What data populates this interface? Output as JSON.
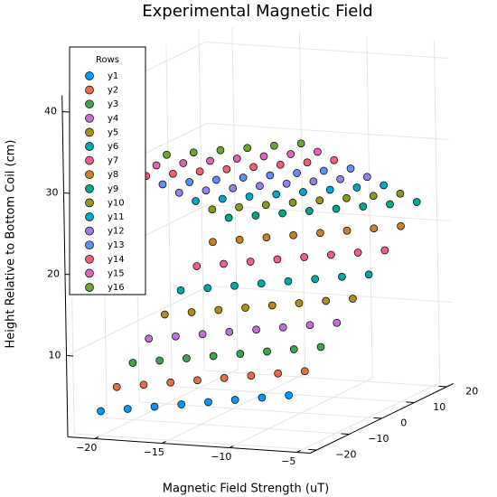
{
  "chart_data": {
    "type": "scatter3d",
    "title": "Experimental Magnetic Field",
    "xlabel": "Magnetic Field Strength (uT)",
    "zlabel": "Height Relative to Bottom Coil (cm)",
    "legend_title": "Rows",
    "legend": "top-left",
    "grid": true,
    "xlim": [
      -22,
      -4
    ],
    "xticks": [
      {
        "value": -20,
        "label": "−20"
      },
      {
        "value": -15,
        "label": "−15"
      },
      {
        "value": -10,
        "label": "−10"
      },
      {
        "value": -5,
        "label": "−5"
      }
    ],
    "ylim": [
      -22,
      22
    ],
    "yticks": [
      {
        "value": -20,
        "label": "−20"
      },
      {
        "value": -10,
        "label": "−10"
      },
      0,
      10,
      20
    ],
    "zlim": [
      0,
      42
    ],
    "zticks": [
      10,
      20,
      30,
      40
    ],
    "series": [
      {
        "name": "y1",
        "color": "#009af9",
        "x": [
          -20,
          -18,
          -16,
          -14,
          -12,
          -10,
          -8,
          -6
        ],
        "y": [
          -20,
          -20,
          -20,
          -20,
          -20,
          -20,
          -20,
          -20
        ],
        "z": [
          3,
          3.5,
          4,
          4.5,
          5,
          5.5,
          6,
          6.5
        ]
      },
      {
        "name": "y2",
        "color": "#e26f46",
        "x": [
          -20,
          -18,
          -16,
          -14,
          -12,
          -10,
          -8,
          -6
        ],
        "y": [
          -15,
          -15,
          -15,
          -15,
          -15,
          -15,
          -15,
          -15
        ],
        "z": [
          5,
          5.5,
          6,
          6.5,
          7,
          7.5,
          8,
          8.5
        ]
      },
      {
        "name": "y3",
        "color": "#3da44d",
        "x": [
          -20,
          -18,
          -16,
          -14,
          -12,
          -10,
          -8,
          -6
        ],
        "y": [
          -10,
          -10,
          -10,
          -10,
          -10,
          -10,
          -10,
          -10
        ],
        "z": [
          7,
          7.5,
          8,
          8.5,
          9,
          9.5,
          10,
          10.5
        ]
      },
      {
        "name": "y4",
        "color": "#c271d2",
        "x": [
          -20,
          -18,
          -16,
          -14,
          -12,
          -10,
          -8,
          -6
        ],
        "y": [
          -5,
          -5,
          -5,
          -5,
          -5,
          -5,
          -5,
          -5
        ],
        "z": [
          9,
          9.5,
          10,
          10.5,
          11,
          11.5,
          12,
          12.5
        ]
      },
      {
        "name": "y5",
        "color": "#ac8e18",
        "x": [
          -20,
          -18,
          -16,
          -14,
          -12,
          -10,
          -8,
          -6
        ],
        "y": [
          0,
          0,
          0,
          0,
          0,
          0,
          0,
          0
        ],
        "z": [
          11,
          11.5,
          12,
          12.5,
          13,
          13.5,
          14,
          14.5
        ]
      },
      {
        "name": "y6",
        "color": "#00a9ad",
        "x": [
          -20,
          -18,
          -16,
          -14,
          -12,
          -10,
          -8,
          -6
        ],
        "y": [
          5,
          5,
          5,
          5,
          5,
          5,
          5,
          5
        ],
        "z": [
          13,
          13.5,
          14,
          14.5,
          15,
          15.5,
          16,
          16.5
        ]
      },
      {
        "name": "y7",
        "color": "#ed5e93",
        "x": [
          -20,
          -18,
          -16,
          -14,
          -12,
          -10,
          -8,
          -6
        ],
        "y": [
          10,
          10,
          10,
          10,
          10,
          10,
          10,
          10
        ],
        "z": [
          15,
          15.5,
          16,
          16.5,
          17,
          17.5,
          18,
          18.5
        ]
      },
      {
        "name": "y8",
        "color": "#c68225",
        "x": [
          -20,
          -18,
          -16,
          -14,
          -12,
          -10,
          -8,
          -6
        ],
        "y": [
          15,
          15,
          15,
          15,
          15,
          15,
          15,
          15
        ],
        "z": [
          17,
          17.5,
          18,
          18.5,
          19,
          19.5,
          20,
          20.5
        ]
      },
      {
        "name": "y9",
        "color": "#00a98d",
        "x": [
          -20,
          -18,
          -16,
          -14,
          -12,
          -10,
          -8,
          -6
        ],
        "y": [
          20,
          20,
          20,
          20,
          20,
          20,
          20,
          20
        ],
        "z": [
          19,
          19.5,
          20,
          20.5,
          21,
          21.5,
          22,
          22.5
        ]
      },
      {
        "name": "y10",
        "color": "#8e971e",
        "x": [
          -20,
          -18,
          -16,
          -14,
          -12,
          -10,
          -8,
          -6
        ],
        "y": [
          15,
          15,
          15,
          15,
          15,
          15,
          15,
          15
        ],
        "z": [
          21,
          21.5,
          22,
          22.5,
          23,
          23.5,
          24,
          24.5
        ]
      },
      {
        "name": "y11",
        "color": "#00a8cb",
        "x": [
          -20,
          -18,
          -16,
          -14,
          -12,
          -10,
          -8,
          -6
        ],
        "y": [
          10,
          10,
          10,
          10,
          10,
          10,
          10,
          10
        ],
        "z": [
          23,
          23.5,
          24,
          24.5,
          25,
          25.5,
          26,
          26.5
        ]
      },
      {
        "name": "y12",
        "color": "#9b7fe9",
        "x": [
          -20,
          -18,
          -16,
          -14,
          -12,
          -10,
          -8,
          -6
        ],
        "y": [
          5,
          5,
          5,
          5,
          5,
          5,
          5,
          5
        ],
        "z": [
          25,
          25.5,
          26,
          26.5,
          27,
          27.5,
          28,
          28.5
        ]
      },
      {
        "name": "y13",
        "color": "#618df6",
        "x": [
          -20,
          -18,
          -16,
          -14,
          -12,
          -10,
          -8,
          -6
        ],
        "y": [
          0,
          0,
          0,
          0,
          0,
          0,
          0,
          0
        ],
        "z": [
          27,
          27.5,
          28,
          28.5,
          29,
          29.5,
          30,
          30.5
        ]
      },
      {
        "name": "y14",
        "color": "#f05f73",
        "x": [
          -20,
          -18,
          -16,
          -14,
          -12,
          -10,
          -8,
          -6
        ],
        "y": [
          -5,
          -5,
          -5,
          -5,
          -5,
          -5,
          -5,
          -5
        ],
        "z": [
          29,
          29.5,
          30,
          30.5,
          31,
          31.5,
          32,
          32.5
        ]
      },
      {
        "name": "y15",
        "color": "#dd65b6",
        "x": [
          -20,
          -18,
          -16,
          -14,
          -12,
          -10,
          -8,
          -6
        ],
        "y": [
          -10,
          -10,
          -10,
          -10,
          -10,
          -10,
          -10,
          -10
        ],
        "z": [
          31,
          31.5,
          32,
          32.5,
          33,
          33.5,
          34,
          34.5
        ]
      },
      {
        "name": "y16",
        "color": "#6aa732",
        "x": [
          -20,
          -18,
          -16,
          -14,
          -12,
          -10,
          -8,
          -6
        ],
        "y": [
          -15,
          -15,
          -15,
          -15,
          -15,
          -15,
          -15,
          -15
        ],
        "z": [
          33,
          33.5,
          34,
          34.5,
          35,
          35.5,
          36,
          36.5
        ]
      }
    ]
  }
}
